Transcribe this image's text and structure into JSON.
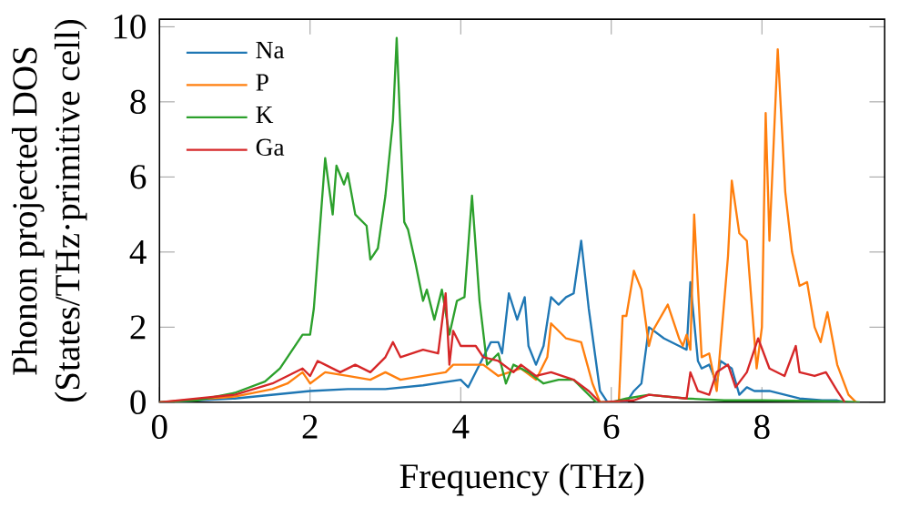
{
  "chart_data": {
    "type": "line",
    "xlabel": "Frequency (THz)",
    "ylabel": "Phonon projected DOS\n(States/THz·primitive cell)",
    "xlim": [
      0,
      9.63
    ],
    "ylim": [
      0,
      10.2
    ],
    "xticks": [
      0,
      2,
      4,
      6,
      8
    ],
    "yticks": [
      0,
      2,
      4,
      6,
      8,
      10
    ],
    "legend": "top left",
    "grid": false,
    "marker": "none",
    "line_style": "solid",
    "series": [
      {
        "name": "Na",
        "color": "#1f77b4",
        "x": [
          0,
          1,
          1.5,
          2,
          2.5,
          3,
          3.5,
          4,
          4.1,
          4.2,
          4.4,
          4.5,
          4.55,
          4.64,
          4.75,
          4.85,
          4.9,
          5.0,
          5.1,
          5.2,
          5.3,
          5.4,
          5.5,
          5.6,
          5.7,
          5.85,
          5.95,
          6.2,
          6.3,
          6.4,
          6.5,
          6.7,
          6.9,
          7.0,
          7.05,
          7.15,
          7.2,
          7.3,
          7.4,
          7.45,
          7.6,
          7.7,
          7.8,
          7.9,
          8.1,
          8.5,
          8.8,
          9.0,
          9.1
        ],
        "values": [
          0,
          0.1,
          0.2,
          0.3,
          0.35,
          0.35,
          0.45,
          0.6,
          0.4,
          0.8,
          1.6,
          1.6,
          1.3,
          2.9,
          2.2,
          2.8,
          1.5,
          1.0,
          1.5,
          2.8,
          2.6,
          2.8,
          2.9,
          4.3,
          2.5,
          0.3,
          0,
          0,
          0.3,
          0.5,
          2.0,
          1.7,
          1.5,
          1.4,
          3.2,
          1.1,
          0.9,
          1.0,
          0.5,
          1.1,
          0.9,
          0.2,
          0.4,
          0.3,
          0.3,
          0.1,
          0.05,
          0.05,
          0
        ]
      },
      {
        "name": "P",
        "color": "#ff7f0e",
        "x": [
          0,
          1,
          1.5,
          1.7,
          1.9,
          2,
          2.2,
          2.5,
          2.8,
          3.0,
          3.2,
          3.5,
          3.8,
          3.9,
          4.3,
          4.5,
          4.8,
          5.0,
          5.15,
          5.2,
          5.4,
          5.6,
          5.75,
          5.85,
          6.1,
          6.15,
          6.2,
          6.3,
          6.4,
          6.5,
          6.55,
          6.75,
          6.9,
          6.95,
          7.0,
          7.05,
          7.1,
          7.2,
          7.3,
          7.4,
          7.55,
          7.6,
          7.7,
          7.8,
          7.93,
          8.0,
          8.05,
          8.1,
          8.21,
          8.31,
          8.4,
          8.5,
          8.6,
          8.7,
          8.78,
          8.87,
          9.0,
          9.15,
          9.25
        ],
        "values": [
          0,
          0.15,
          0.35,
          0.5,
          0.8,
          0.5,
          0.8,
          0.7,
          0.6,
          0.8,
          0.6,
          0.7,
          0.8,
          1.0,
          1.0,
          0.7,
          0.9,
          0.6,
          1.2,
          2.1,
          1.7,
          1.6,
          0.5,
          0,
          0,
          2.3,
          2.3,
          3.5,
          3.0,
          1.5,
          1.9,
          2.6,
          1.7,
          1.5,
          1.8,
          1.4,
          5.0,
          1.2,
          1.3,
          0.3,
          3.9,
          5.9,
          4.5,
          4.3,
          0.9,
          2.0,
          7.7,
          4.3,
          9.4,
          5.6,
          4.0,
          3.1,
          3.2,
          2.0,
          1.6,
          2.4,
          1.0,
          0.2,
          0
        ]
      },
      {
        "name": "K",
        "color": "#2ca02c",
        "x": [
          0,
          0.5,
          1,
          1.4,
          1.6,
          1.9,
          2,
          2.05,
          2.2,
          2.3,
          2.35,
          2.45,
          2.5,
          2.6,
          2.75,
          2.8,
          2.9,
          3,
          3.1,
          3.15,
          3.25,
          3.3,
          3.4,
          3.5,
          3.55,
          3.65,
          3.75,
          3.85,
          3.95,
          4.05,
          4.15,
          4.25,
          4.35,
          4.5,
          4.6,
          4.7,
          4.9,
          5.1,
          5.3,
          5.5,
          5.75,
          5.8,
          6.0,
          6.2,
          6.5,
          7,
          7.5,
          8,
          9,
          9.3
        ],
        "values": [
          0,
          0.05,
          0.25,
          0.55,
          0.9,
          1.8,
          1.8,
          2.5,
          6.5,
          5.0,
          6.3,
          5.8,
          6.1,
          5.0,
          4.7,
          3.8,
          4.1,
          5.5,
          7.5,
          9.7,
          4.8,
          4.6,
          3.7,
          2.7,
          3.0,
          2.2,
          3.0,
          1.8,
          2.7,
          2.8,
          5.5,
          2.7,
          1.0,
          1.3,
          0.5,
          1.0,
          0.8,
          0.5,
          0.6,
          0.6,
          0.1,
          0,
          0,
          0.1,
          0.2,
          0.1,
          0.05,
          0.05,
          0.02,
          0
        ]
      },
      {
        "name": "Ga",
        "color": "#d62728",
        "x": [
          0,
          1,
          1.5,
          1.9,
          2.0,
          2.1,
          2.2,
          2.4,
          2.6,
          2.8,
          3.0,
          3.1,
          3.2,
          3.5,
          3.7,
          3.8,
          3.85,
          3.9,
          4.0,
          4.2,
          4.3,
          4.5,
          4.7,
          4.8,
          5.0,
          5.2,
          5.5,
          5.7,
          5.85,
          6.3,
          6.5,
          7.0,
          7.05,
          7.15,
          7.3,
          7.4,
          7.55,
          7.65,
          7.8,
          7.95,
          8.1,
          8.3,
          8.45,
          8.5,
          8.7,
          8.85,
          9.0,
          9.1
        ],
        "values": [
          0,
          0.2,
          0.5,
          0.9,
          0.7,
          1.1,
          1.0,
          0.8,
          1.0,
          0.8,
          1.2,
          1.6,
          1.2,
          1.4,
          1.3,
          2.9,
          1.0,
          1.9,
          1.5,
          1.5,
          1.2,
          1.1,
          0.8,
          1.0,
          0.7,
          0.8,
          0.6,
          0.3,
          0,
          0.05,
          0.2,
          0.1,
          0.8,
          0.3,
          0.2,
          0.8,
          1.0,
          0.4,
          0.8,
          1.7,
          0.9,
          0.7,
          1.5,
          0.8,
          0.7,
          0.8,
          0.3,
          0
        ]
      }
    ]
  }
}
